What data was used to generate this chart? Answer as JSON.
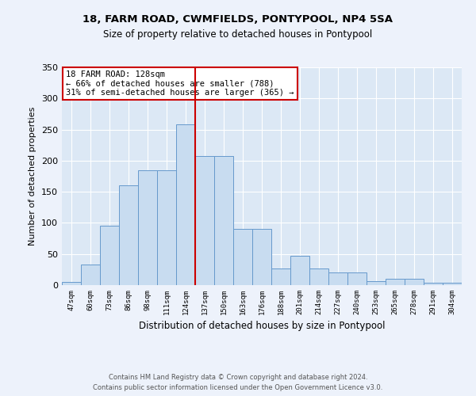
{
  "title": "18, FARM ROAD, CWMFIELDS, PONTYPOOL, NP4 5SA",
  "subtitle": "Size of property relative to detached houses in Pontypool",
  "xlabel": "Distribution of detached houses by size in Pontypool",
  "ylabel": "Number of detached properties",
  "categories": [
    "47sqm",
    "60sqm",
    "73sqm",
    "86sqm",
    "98sqm",
    "111sqm",
    "124sqm",
    "137sqm",
    "150sqm",
    "163sqm",
    "176sqm",
    "188sqm",
    "201sqm",
    "214sqm",
    "227sqm",
    "240sqm",
    "253sqm",
    "265sqm",
    "278sqm",
    "291sqm",
    "304sqm"
  ],
  "values": [
    5,
    33,
    95,
    160,
    184,
    185,
    258,
    207,
    207,
    90,
    90,
    27,
    47,
    27,
    20,
    20,
    6,
    10,
    10,
    4,
    4
  ],
  "bar_color": "#c8dcf0",
  "bar_edge_color": "#6699cc",
  "highlight_index": 6,
  "highlight_color": "#cc0000",
  "annotation_title": "18 FARM ROAD: 128sqm",
  "annotation_line1": "← 66% of detached houses are smaller (788)",
  "annotation_line2": "31% of semi-detached houses are larger (365) →",
  "footer1": "Contains HM Land Registry data © Crown copyright and database right 2024.",
  "footer2": "Contains public sector information licensed under the Open Government Licence v3.0.",
  "ylim": [
    0,
    350
  ],
  "yticks": [
    0,
    50,
    100,
    150,
    200,
    250,
    300,
    350
  ],
  "bg_color": "#edf2fb",
  "plot_bg_color": "#dce8f5"
}
